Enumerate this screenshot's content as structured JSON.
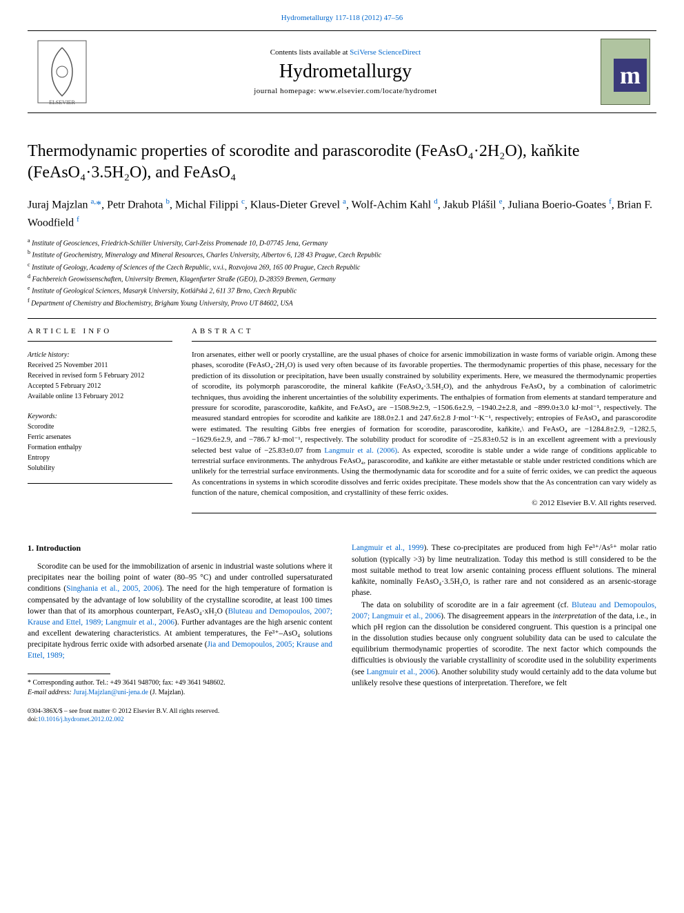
{
  "header": {
    "citation": "Hydrometallurgy 117-118 (2012) 47–56",
    "contents_prefix": "Contents lists available at ",
    "contents_link": "SciVerse ScienceDirect",
    "journal_name": "Hydrometallurgy",
    "homepage_prefix": "journal homepage: ",
    "homepage_url": "www.elsevier.com/locate/hydromet"
  },
  "title": "Thermodynamic properties of scorodite and parascorodite (FeAsO₄·2H₂O), kaňkite (FeAsO₄·3.5H₂O), and FeAsO₄",
  "authors_html": "Juraj Majzlan <sup>a,</sup><span class='corr'>*</span>, Petr Drahota <sup>b</sup>, Michal Filippi <sup>c</sup>, Klaus-Dieter Grevel <sup>a</sup>, Wolf-Achim Kahl <sup>d</sup>, Jakub Plášil <sup>e</sup>, Juliana Boerio-Goates <sup>f</sup>, Brian F. Woodfield <sup>f</sup>",
  "affiliations": [
    "Institute of Geosciences, Friedrich-Schiller University, Carl-Zeiss Promenade 10, D-07745 Jena, Germany",
    "Institute of Geochemistry, Mineralogy and Mineral Resources, Charles University, Albertov 6, 128 43 Prague, Czech Republic",
    "Institute of Geology, Academy of Sciences of the Czech Republic, v.v.i., Rozvojova 269, 165 00 Prague, Czech Republic",
    "Fachbereich Geowissenschaften, University Bremen, Klagenfurter Straße (GEO), D-28359 Bremen, Germany",
    "Institute of Geological Sciences, Masaryk University, Kotlářská 2, 611 37 Brno, Czech Republic",
    "Department of Chemistry and Biochemistry, Brigham Young University, Provo UT 84602, USA"
  ],
  "aff_labels": [
    "a",
    "b",
    "c",
    "d",
    "e",
    "f"
  ],
  "info": {
    "head": "ARTICLE INFO",
    "history_label": "Article history:",
    "history": [
      "Received 25 November 2011",
      "Received in revised form 5 February 2012",
      "Accepted 5 February 2012",
      "Available online 13 February 2012"
    ],
    "keywords_label": "Keywords:",
    "keywords": [
      "Scorodite",
      "Ferric arsenates",
      "Formation enthalpy",
      "Entropy",
      "Solubility"
    ]
  },
  "abstract": {
    "head": "ABSTRACT",
    "text": "Iron arsenates, either well or poorly crystalline, are the usual phases of choice for arsenic immobilization in waste forms of variable origin. Among these phases, scorodite (FeAsO₄·2H₂O) is used very often because of its favorable properties. The thermodynamic properties of this phase, necessary for the prediction of its dissolution or precipitation, have been usually constrained by solubility experiments. Here, we measured the thermodynamic properties of scorodite, its polymorph parascorodite, the mineral kaňkite (FeAsO₄·3.5H₂O), and the anhydrous FeAsO₄ by a combination of calorimetric techniques, thus avoiding the inherent uncertainties of the solubility experiments. The enthalpies of formation from elements at standard temperature and pressure for scorodite, parascorodite, kaňkite, and FeAsO₄ are −1508.9±2.9, −1506.6±2.9, −1940.2±2.8, and −899.0±3.0 kJ·mol⁻¹, respectively. The measured standard entropies for scorodite and kaňkite are 188.0±2.1 and 247.6±2.8 J·mol⁻¹·K⁻¹, respectively; entropies of FeAsO₄ and parascorodite were estimated. The resulting Gibbs free energies of formation for scorodite, parascorodite, kaňkite,\\ and FeAsO₄ are −1284.8±2.9, −1282.5, −1629.6±2.9, and −786.7 kJ·mol⁻¹, respectively. The solubility product for scorodite of −25.83±0.52 is in an excellent agreement with a previously selected best value of −25.83±0.07 from ",
    "ref1": "Langmuir et al. (2006)",
    "text2": ". As expected, scorodite is stable under a wide range of conditions applicable to terrestrial surface environments. The anhydrous FeAsO₄, parascorodite, and kaňkite are either metastable or stable under restricted conditions which are unlikely for the terrestrial surface environments. Using the thermodynamic data for scorodite and for a suite of ferric oxides, we can predict the aqueous As concentrations in systems in which scorodite dissolves and ferric oxides precipitate. These models show that the As concentration can vary widely as function of the nature, chemical composition, and crystallinity of these ferric oxides.",
    "copyright": "© 2012 Elsevier B.V. All rights reserved."
  },
  "body": {
    "intro_head": "1. Introduction",
    "col1_p1_a": "Scorodite can be used for the immobilization of arsenic in industrial waste solutions where it precipitates near the boiling point of water (80–95 °C) and under controlled supersaturated conditions (",
    "col1_ref1": "Singhania et al., 2005, 2006",
    "col1_p1_b": "). The need for the high temperature of formation is compensated by the advantage of low solubility of the crystalline scorodite, at least 100 times lower than that of its amorphous counterpart, FeAsO₄·xH₂O (",
    "col1_ref2": "Bluteau and Demopoulos, 2007; Krause and Ettel, 1989; Langmuir et al., 2006",
    "col1_p1_c": "). Further advantages are the high arsenic content and excellent dewatering characteristics. At ambient temperatures, the Fe³⁺–AsO₄ solutions precipitate hydrous ferric oxide with adsorbed arsenate (",
    "col1_ref3": "Jia and Demopoulos, 2005; Krause and Ettel, 1989;",
    "col2_ref0": "Langmuir et al., 1999",
    "col2_p0": "). These co-precipitates are produced from high Fe³⁺/As⁵⁺ molar ratio solution (typically >3) by lime neutralization. Today this method is still considered to be the most suitable method to treat low arsenic containing process effluent solutions. The mineral kaňkite, nominally FeAsO₄·3.5H₂O, is rather rare and not considered as an arsenic-storage phase.",
    "col2_p1_a": "The data on solubility of scorodite are in a fair agreement (cf. ",
    "col2_ref1": "Bluteau and Demopoulos, 2007; Langmuir et al., 2006",
    "col2_p1_b": "). The disagreement appears in the ",
    "col2_em": "interpretation",
    "col2_p1_c": " of the data, i.e., in which pH region can the dissolution be considered congruent. This question is a principal one in the dissolution studies because only congruent solubility data can be used to calculate the equilibrium thermodynamic properties of scorodite. The next factor which compounds the difficulties is obviously the variable crystallinity of scorodite used in the solubility experiments (see ",
    "col2_ref2": "Langmuir et al., 2006",
    "col2_p1_d": "). Another solubility study would certainly add to the data volume but unlikely resolve these questions of interpretation. Therefore, we felt"
  },
  "footnote": {
    "corr": "* Corresponding author. Tel.: +49 3641 948700; fax: +49 3641 948602.",
    "email_label": "E-mail address:",
    "email": "Juraj.Majzlan@uni-jena.de",
    "email_suffix": " (J. Majzlan)."
  },
  "bottom": {
    "line1": "0304-386X/$ – see front matter © 2012 Elsevier B.V. All rights reserved.",
    "doi_prefix": "doi:",
    "doi": "10.1016/j.hydromet.2012.02.002"
  },
  "colors": {
    "link": "#0066cc",
    "text": "#000000",
    "cover_bg": "#b0c4a0",
    "cover_m_bg": "#3a3a7a"
  }
}
